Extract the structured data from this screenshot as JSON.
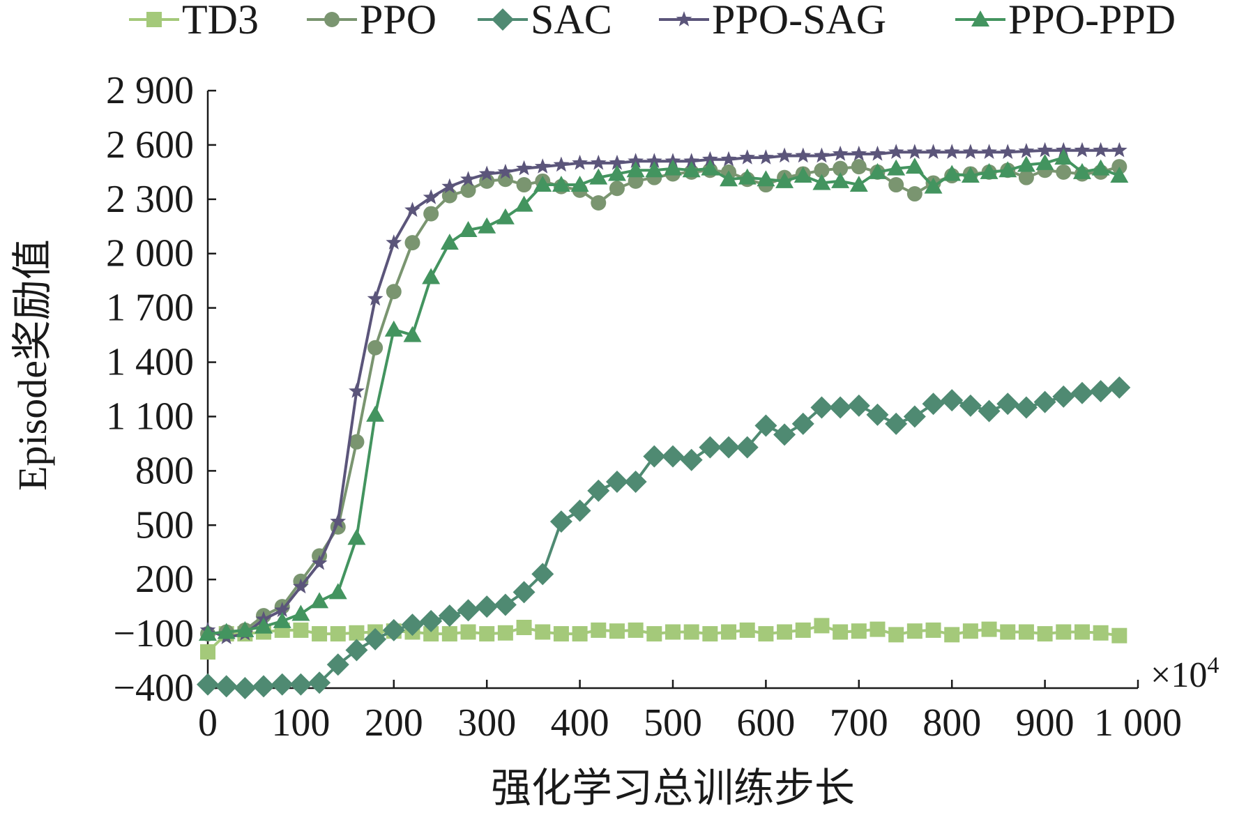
{
  "chart_data": {
    "type": "line",
    "xlabel": "强化学习总训练步长",
    "ylabel": "Episode奖励值",
    "x_multiplier_label": "×10",
    "x_multiplier_exp": "4",
    "xlim": [
      0,
      1000
    ],
    "ylim": [
      -400,
      2900
    ],
    "x_ticks": [
      0,
      100,
      200,
      300,
      400,
      500,
      600,
      700,
      800,
      900,
      1000
    ],
    "x_tick_labels": [
      "0",
      "100",
      "200",
      "300",
      "400",
      "500",
      "600",
      "700",
      "800",
      "900",
      "1 000"
    ],
    "y_ticks": [
      -400,
      -100,
      200,
      500,
      800,
      1100,
      1400,
      1700,
      2000,
      2300,
      2600,
      2900
    ],
    "y_tick_labels": [
      "−400",
      "−100",
      "200",
      "500",
      "800",
      "1 100",
      "1 400",
      "1 700",
      "2 000",
      "2 300",
      "2 600",
      "2 900"
    ],
    "grid": false,
    "legend_position": "top",
    "x": [
      0,
      20,
      40,
      60,
      80,
      100,
      120,
      140,
      160,
      180,
      200,
      220,
      240,
      260,
      280,
      300,
      320,
      340,
      360,
      380,
      400,
      420,
      440,
      460,
      480,
      500,
      520,
      540,
      560,
      580,
      600,
      620,
      640,
      660,
      680,
      700,
      720,
      740,
      760,
      780,
      800,
      820,
      840,
      860,
      880,
      900,
      920,
      940,
      960,
      980
    ],
    "series": [
      {
        "name": "TD3",
        "marker": "square",
        "color": "#a4c97a",
        "values": [
          -200,
          -100,
          -100,
          -90,
          -80,
          -80,
          -100,
          -100,
          -95,
          -90,
          -85,
          -90,
          -100,
          -100,
          -90,
          -100,
          -95,
          -65,
          -90,
          -100,
          -100,
          -80,
          -85,
          -80,
          -100,
          -90,
          -90,
          -100,
          -90,
          -80,
          -100,
          -90,
          -80,
          -55,
          -90,
          -85,
          -75,
          -105,
          -85,
          -80,
          -105,
          -85,
          -75,
          -90,
          -90,
          -100,
          -90,
          -90,
          -95,
          -110
        ]
      },
      {
        "name": "PPO",
        "marker": "circle",
        "color": "#7a9570",
        "values": [
          -100,
          -90,
          -80,
          0,
          50,
          190,
          330,
          490,
          960,
          1480,
          1790,
          2060,
          2220,
          2320,
          2350,
          2400,
          2410,
          2380,
          2400,
          2370,
          2350,
          2280,
          2360,
          2400,
          2420,
          2440,
          2450,
          2460,
          2450,
          2410,
          2380,
          2420,
          2440,
          2460,
          2470,
          2480,
          2450,
          2380,
          2330,
          2390,
          2430,
          2440,
          2450,
          2460,
          2420,
          2460,
          2450,
          2440,
          2450,
          2480
        ]
      },
      {
        "name": "SAC",
        "marker": "diamond",
        "color": "#4f8a72",
        "values": [
          -380,
          -390,
          -400,
          -390,
          -380,
          -380,
          -370,
          -270,
          -190,
          -130,
          -80,
          -50,
          -30,
          0,
          30,
          50,
          60,
          130,
          230,
          520,
          580,
          690,
          740,
          740,
          880,
          880,
          860,
          930,
          930,
          930,
          1050,
          1000,
          1060,
          1150,
          1150,
          1160,
          1110,
          1060,
          1100,
          1170,
          1190,
          1160,
          1130,
          1170,
          1150,
          1180,
          1210,
          1230,
          1240,
          1260
        ]
      },
      {
        "name": "PPO-SAG",
        "marker": "star",
        "color": "#5b557a",
        "values": [
          -80,
          -120,
          -100,
          -20,
          30,
          160,
          290,
          520,
          1240,
          1750,
          2060,
          2240,
          2310,
          2370,
          2410,
          2440,
          2450,
          2470,
          2480,
          2490,
          2500,
          2500,
          2500,
          2510,
          2510,
          2510,
          2510,
          2520,
          2520,
          2530,
          2530,
          2540,
          2540,
          2540,
          2550,
          2550,
          2550,
          2560,
          2560,
          2560,
          2560,
          2560,
          2560,
          2560,
          2565,
          2570,
          2570,
          2570,
          2570,
          2570
        ]
      },
      {
        "name": "PPO-PPD",
        "marker": "triangle",
        "color": "#43945f",
        "values": [
          -100,
          -90,
          -80,
          -60,
          -30,
          10,
          80,
          130,
          430,
          1110,
          1580,
          1550,
          1870,
          2060,
          2130,
          2150,
          2200,
          2270,
          2380,
          2380,
          2380,
          2420,
          2440,
          2460,
          2460,
          2470,
          2460,
          2470,
          2410,
          2420,
          2410,
          2400,
          2430,
          2390,
          2400,
          2380,
          2450,
          2470,
          2480,
          2370,
          2440,
          2430,
          2450,
          2460,
          2490,
          2500,
          2530,
          2450,
          2470,
          2430
        ]
      }
    ]
  }
}
